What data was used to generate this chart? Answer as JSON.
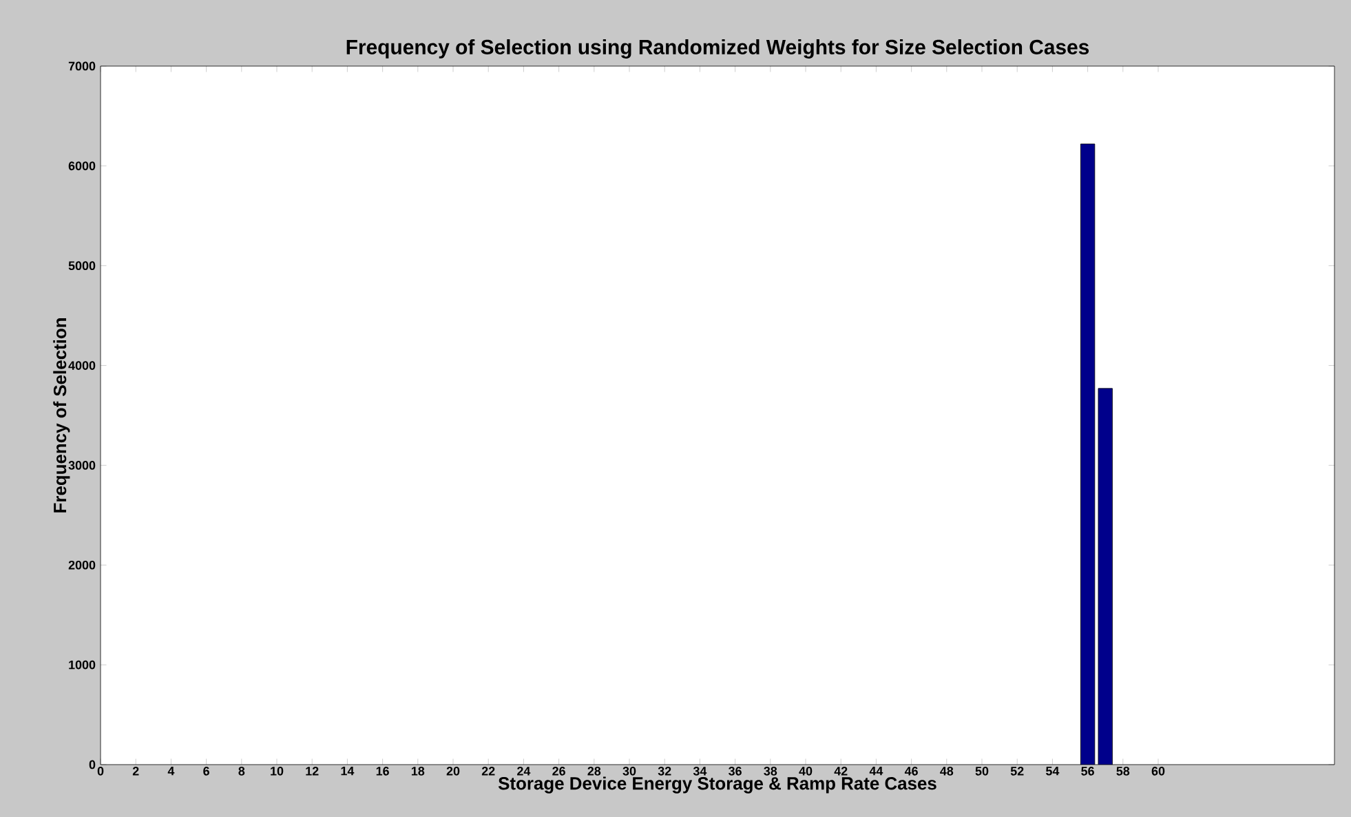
{
  "chart_data": {
    "type": "bar",
    "title": "Frequency of Selection using Randomized Weights for Size Selection Cases",
    "xlabel": "Storage Device Energy Storage & Ramp Rate Cases",
    "ylabel": "Frequency of Selection",
    "x": [
      56,
      57
    ],
    "values": [
      6220,
      3770
    ],
    "color": "#00008b",
    "xlim": [
      0,
      70
    ],
    "xticks": [
      0,
      2,
      4,
      6,
      8,
      10,
      12,
      14,
      16,
      18,
      20,
      22,
      24,
      26,
      28,
      30,
      32,
      34,
      36,
      38,
      40,
      42,
      44,
      46,
      48,
      50,
      52,
      54,
      56,
      58,
      60
    ],
    "ylim": [
      0,
      7000
    ],
    "yticks": [
      0,
      1000,
      2000,
      3000,
      4000,
      5000,
      6000,
      7000
    ],
    "grid": false
  }
}
